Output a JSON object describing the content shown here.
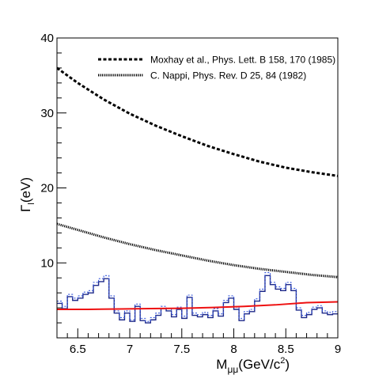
{
  "chart_data": {
    "type": "line",
    "title": "",
    "xlabel": "M_μμ(GeV/c^2)",
    "ylabel": "Γ_l(eV)",
    "xlim": [
      6.3,
      9.0
    ],
    "ylim": [
      0,
      40
    ],
    "x_ticks": [
      "6.5",
      "7",
      "7.5",
      "8",
      "8.5",
      "9"
    ],
    "y_ticks": [
      "10",
      "20",
      "30",
      "40"
    ],
    "x_tick_values": [
      6.5,
      7.0,
      7.5,
      8.0,
      8.5,
      9.0
    ],
    "y_tick_values": [
      10,
      20,
      30,
      40
    ],
    "legend_position": "top-right",
    "legend": [
      {
        "label": "Moxhay et al., Phys. Lett. B 158, 170 (1985)",
        "style": "dashed"
      },
      {
        "label": "C. Nappi, Phys. Rev. D 25, 84 (1982)",
        "style": "dotted"
      }
    ],
    "series": [
      {
        "name": "Moxhay et al., Phys. Lett. B 158, 170 (1985)",
        "style": "dashed",
        "color": "#000000",
        "x": [
          6.3,
          6.5,
          6.75,
          7.0,
          7.25,
          7.5,
          7.75,
          8.0,
          8.25,
          8.5,
          8.75,
          9.0
        ],
        "y": [
          36.0,
          34.0,
          31.8,
          29.9,
          28.3,
          26.9,
          25.6,
          24.5,
          23.5,
          22.7,
          22.1,
          21.6
        ]
      },
      {
        "name": "C. Nappi, Phys. Rev. D 25, 84 (1982)",
        "style": "dotted",
        "color": "#000000",
        "x": [
          6.3,
          6.5,
          6.75,
          7.0,
          7.25,
          7.5,
          7.75,
          8.0,
          8.25,
          8.5,
          8.75,
          9.0
        ],
        "y": [
          15.2,
          14.4,
          13.4,
          12.5,
          11.7,
          11.0,
          10.3,
          9.7,
          9.2,
          8.8,
          8.4,
          8.1
        ]
      },
      {
        "style": "solid",
        "color": "#ee1111",
        "x": [
          6.3,
          6.6,
          6.9,
          7.2,
          7.5,
          7.8,
          8.1,
          8.4,
          8.7,
          9.0
        ],
        "y": [
          3.8,
          3.8,
          3.85,
          3.9,
          3.95,
          4.05,
          4.2,
          4.4,
          4.7,
          4.8
        ]
      }
    ],
    "histograms": [
      {
        "style": "step",
        "color": "#1f2a8a",
        "bin_width": 0.05,
        "bin_start": 6.3,
        "values": [
          4.6,
          3.9,
          5.5,
          5.0,
          5.3,
          5.8,
          6.0,
          7.0,
          7.5,
          7.9,
          5.3,
          3.3,
          2.4,
          3.3,
          2.2,
          4.2,
          2.3,
          2.0,
          2.4,
          3.0,
          3.9,
          3.6,
          2.8,
          3.8,
          2.6,
          5.4,
          3.0,
          2.8,
          3.1,
          2.7,
          3.6,
          2.9,
          4.7,
          5.3,
          3.8,
          2.3,
          3.2,
          3.5,
          4.9,
          6.2,
          8.3,
          7.1,
          6.5,
          6.3,
          7.1,
          6.3,
          3.7,
          2.7,
          3.1,
          3.8,
          4.0,
          3.3,
          3.1,
          3.2
        ]
      },
      {
        "style": "dashed-step",
        "color": "#3355dd",
        "bin_width": 0.05,
        "bin_start": 6.3,
        "values": [
          4.9,
          4.2,
          5.8,
          5.3,
          5.6,
          6.1,
          6.3,
          7.4,
          7.9,
          8.3,
          5.6,
          3.6,
          2.7,
          3.6,
          2.4,
          4.5,
          2.6,
          2.2,
          2.7,
          3.3,
          4.2,
          3.9,
          3.1,
          4.1,
          2.9,
          5.7,
          3.3,
          3.1,
          3.4,
          3.0,
          3.9,
          3.2,
          5.0,
          5.6,
          4.1,
          2.6,
          3.5,
          3.8,
          5.2,
          6.5,
          8.7,
          7.4,
          6.8,
          6.6,
          7.4,
          6.6,
          4.0,
          3.0,
          3.4,
          4.1,
          4.3,
          3.6,
          3.4,
          3.5
        ]
      }
    ]
  }
}
